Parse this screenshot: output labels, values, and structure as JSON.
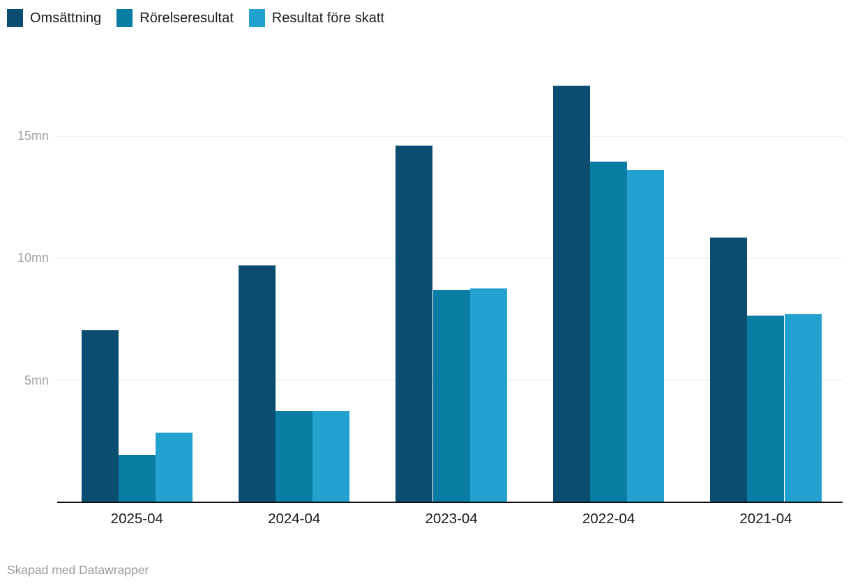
{
  "legend": {
    "items": [
      {
        "label": "Omsättning",
        "color": "#0b4d71"
      },
      {
        "label": "Rörelseresultat",
        "color": "#0a7da5"
      },
      {
        "label": "Resultat före skatt",
        "color": "#23a2cf"
      }
    ]
  },
  "chart_data": {
    "type": "bar",
    "title": "",
    "xlabel": "",
    "ylabel": "",
    "unit": "mn",
    "categories": [
      "2025-04",
      "2024-04",
      "2023-04",
      "2022-04",
      "2021-04"
    ],
    "series": [
      {
        "name": "Omsättning",
        "color": "#0b4d71",
        "values": [
          7.05,
          9.7,
          14.6,
          17.05,
          10.85
        ]
      },
      {
        "name": "Rörelseresultat",
        "color": "#0a7da5",
        "values": [
          1.95,
          3.75,
          8.7,
          13.95,
          7.65
        ]
      },
      {
        "name": "Resultat före skatt",
        "color": "#23a2cf",
        "values": [
          2.85,
          3.75,
          8.75,
          13.6,
          7.7
        ]
      }
    ],
    "y_ticks": [
      {
        "value": 5,
        "label": "5mn"
      },
      {
        "value": 10,
        "label": "10mn"
      },
      {
        "value": 15,
        "label": "15mn"
      }
    ],
    "ylim": [
      0,
      17.5
    ],
    "grid": true,
    "legend_position": "top-left"
  },
  "footer": {
    "attribution": "Skapad med Datawrapper"
  },
  "colors": {
    "background": "#ffffff",
    "grid_line": "#e6e6e6",
    "axis_line": "#111111",
    "axis_tick_label": "#a2a2a4",
    "category_label": "#1a1a1a",
    "legend_text": "#1c1c1c",
    "attribution_text": "#9a9a9c"
  }
}
